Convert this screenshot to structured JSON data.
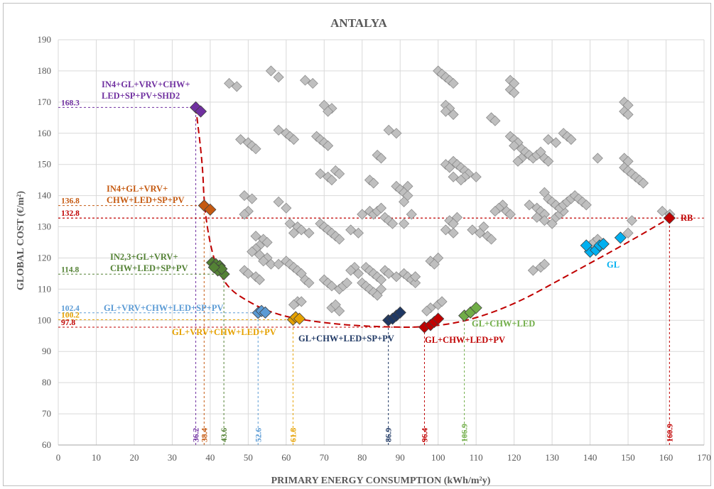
{
  "chart_data": {
    "type": "scatter",
    "title": "ANTALYA",
    "xlabel": "PRIMARY ENERGY CONSUMPTION (kWh/m²y)",
    "ylabel": "GLOBAL COST (€/m²)",
    "xlim": [
      0,
      170
    ],
    "ylim": [
      60,
      190
    ],
    "xticks": [
      "0",
      "10",
      "20",
      "30",
      "40",
      "50",
      "60",
      "70",
      "80",
      "90",
      "100",
      "110",
      "120",
      "130",
      "140",
      "150",
      "160",
      "170"
    ],
    "yticks": [
      "60",
      "70",
      "80",
      "90",
      "100",
      "110",
      "120",
      "130",
      "140",
      "150",
      "160",
      "170",
      "180",
      "190"
    ],
    "grid": true,
    "colors": {
      "grey": "#bfbfbf",
      "purple": "#7030a0",
      "orange": "#c55a11",
      "green": "#548235",
      "lightblue": "#5b9bd5",
      "gold": "#e5a100",
      "navy": "#1f3864",
      "red": "#c00000",
      "lightgreen": "#70ad47",
      "cyan": "#00b0f0"
    },
    "background_points": [
      [
        45,
        176
      ],
      [
        47,
        175
      ],
      [
        56,
        180
      ],
      [
        58,
        178
      ],
      [
        65,
        177
      ],
      [
        67,
        176
      ],
      [
        48,
        158
      ],
      [
        50,
        157
      ],
      [
        51,
        156
      ],
      [
        52,
        155
      ],
      [
        58,
        161
      ],
      [
        60,
        160
      ],
      [
        61,
        159
      ],
      [
        62,
        158
      ],
      [
        70,
        169
      ],
      [
        72,
        168
      ],
      [
        71,
        167
      ],
      [
        68,
        159
      ],
      [
        69,
        158
      ],
      [
        70,
        157
      ],
      [
        71,
        156
      ],
      [
        49,
        140
      ],
      [
        51,
        139
      ],
      [
        50,
        135
      ],
      [
        49,
        134
      ],
      [
        52,
        127
      ],
      [
        54,
        126
      ],
      [
        55,
        125
      ],
      [
        53,
        124
      ],
      [
        58,
        138
      ],
      [
        60,
        136
      ],
      [
        61,
        131
      ],
      [
        63,
        130
      ],
      [
        62,
        128
      ],
      [
        64,
        129
      ],
      [
        66,
        128
      ],
      [
        52,
        123
      ],
      [
        51,
        122
      ],
      [
        53,
        121
      ],
      [
        55,
        120
      ],
      [
        54,
        119
      ],
      [
        56,
        118
      ],
      [
        58,
        118
      ],
      [
        60,
        119
      ],
      [
        61,
        118
      ],
      [
        62,
        117
      ],
      [
        63,
        116
      ],
      [
        64,
        115
      ],
      [
        65,
        113
      ],
      [
        66,
        112
      ],
      [
        49,
        116
      ],
      [
        50,
        115
      ],
      [
        52,
        114
      ],
      [
        53,
        113
      ],
      [
        63,
        106
      ],
      [
        62,
        105
      ],
      [
        64,
        106
      ],
      [
        69,
        147
      ],
      [
        71,
        146
      ],
      [
        72,
        145
      ],
      [
        73,
        148
      ],
      [
        74,
        147
      ],
      [
        69,
        131
      ],
      [
        70,
        130
      ],
      [
        71,
        129
      ],
      [
        72,
        128
      ],
      [
        73,
        127
      ],
      [
        74,
        126
      ],
      [
        70,
        113
      ],
      [
        71,
        112
      ],
      [
        72,
        111
      ],
      [
        74,
        110
      ],
      [
        75,
        111
      ],
      [
        76,
        112
      ],
      [
        72,
        104
      ],
      [
        73,
        105
      ],
      [
        74,
        103
      ],
      [
        77,
        129
      ],
      [
        79,
        128
      ],
      [
        78,
        117
      ],
      [
        77,
        116
      ],
      [
        79,
        115
      ],
      [
        80,
        134
      ],
      [
        82,
        135
      ],
      [
        83,
        134
      ],
      [
        84,
        135
      ],
      [
        85,
        136
      ],
      [
        86,
        133
      ],
      [
        87,
        132
      ],
      [
        88,
        131
      ],
      [
        82,
        145
      ],
      [
        83,
        144
      ],
      [
        84,
        153
      ],
      [
        85,
        152
      ],
      [
        87,
        161
      ],
      [
        89,
        160
      ],
      [
        81,
        117
      ],
      [
        82,
        116
      ],
      [
        83,
        115
      ],
      [
        84,
        114
      ],
      [
        85,
        113
      ],
      [
        86,
        116
      ],
      [
        87,
        115
      ],
      [
        80,
        112
      ],
      [
        81,
        111
      ],
      [
        82,
        110
      ],
      [
        83,
        109
      ],
      [
        84,
        108
      ],
      [
        85,
        110
      ],
      [
        89,
        143
      ],
      [
        90,
        142
      ],
      [
        91,
        141
      ],
      [
        92,
        140
      ],
      [
        92,
        143
      ],
      [
        91,
        138
      ],
      [
        89,
        114
      ],
      [
        91,
        115
      ],
      [
        92,
        114
      ],
      [
        93,
        113
      ],
      [
        94,
        112
      ],
      [
        94,
        114
      ],
      [
        91,
        131
      ],
      [
        93,
        134
      ],
      [
        100,
        180
      ],
      [
        101,
        179
      ],
      [
        102,
        178
      ],
      [
        103,
        177
      ],
      [
        104,
        176
      ],
      [
        102,
        169
      ],
      [
        103,
        168
      ],
      [
        102,
        167
      ],
      [
        104,
        166
      ],
      [
        102,
        150
      ],
      [
        103,
        149
      ],
      [
        104,
        151
      ],
      [
        105,
        150
      ],
      [
        106,
        149
      ],
      [
        107,
        148
      ],
      [
        108,
        147
      ],
      [
        107,
        146
      ],
      [
        106,
        145
      ],
      [
        104,
        146
      ],
      [
        110,
        146
      ],
      [
        103,
        132
      ],
      [
        104,
        131
      ],
      [
        105,
        133
      ],
      [
        102,
        129
      ],
      [
        104,
        128
      ],
      [
        98,
        119
      ],
      [
        100,
        120
      ],
      [
        99,
        118
      ],
      [
        98,
        104
      ],
      [
        100,
        105
      ],
      [
        101,
        106
      ],
      [
        97,
        103
      ],
      [
        114,
        165
      ],
      [
        115,
        164
      ],
      [
        117,
        137
      ],
      [
        116,
        136
      ],
      [
        118,
        135
      ],
      [
        119,
        134
      ],
      [
        115,
        135
      ],
      [
        109,
        129
      ],
      [
        111,
        128
      ],
      [
        112,
        130
      ],
      [
        113,
        127
      ],
      [
        114,
        126
      ],
      [
        119,
        177
      ],
      [
        120,
        176
      ],
      [
        119,
        174
      ],
      [
        120,
        173
      ],
      [
        119,
        159
      ],
      [
        120,
        158
      ],
      [
        121,
        157
      ],
      [
        120,
        156
      ],
      [
        122,
        155
      ],
      [
        123,
        154
      ],
      [
        124,
        153
      ],
      [
        122,
        152
      ],
      [
        121,
        151
      ],
      [
        125,
        152
      ],
      [
        126,
        153
      ],
      [
        127,
        154
      ],
      [
        124,
        137
      ],
      [
        126,
        136
      ],
      [
        127,
        135
      ],
      [
        128,
        134
      ],
      [
        126,
        133
      ],
      [
        128,
        132
      ],
      [
        130,
        131
      ],
      [
        131,
        133
      ],
      [
        132,
        134
      ],
      [
        133,
        135
      ],
      [
        128,
        141
      ],
      [
        129,
        139
      ],
      [
        130,
        138
      ],
      [
        131,
        137
      ],
      [
        132,
        136
      ],
      [
        133,
        137
      ],
      [
        134,
        138
      ],
      [
        135,
        139
      ],
      [
        136,
        140
      ],
      [
        137,
        139
      ],
      [
        138,
        138
      ],
      [
        139,
        137
      ],
      [
        129,
        158
      ],
      [
        131,
        157
      ],
      [
        133,
        160
      ],
      [
        134,
        159
      ],
      [
        135,
        158
      ],
      [
        125,
        116
      ],
      [
        127,
        117
      ],
      [
        128,
        118
      ],
      [
        128,
        152
      ],
      [
        129,
        151
      ],
      [
        142,
        152
      ],
      [
        140,
        124
      ],
      [
        141,
        125
      ],
      [
        142,
        126
      ],
      [
        143,
        124
      ],
      [
        149,
        170
      ],
      [
        150,
        169
      ],
      [
        149,
        167
      ],
      [
        150,
        166
      ],
      [
        149,
        152
      ],
      [
        150,
        151
      ],
      [
        149,
        149
      ],
      [
        150,
        148
      ],
      [
        151,
        147
      ],
      [
        152,
        146
      ],
      [
        153,
        145
      ],
      [
        154,
        144
      ],
      [
        150,
        128
      ],
      [
        151,
        132
      ],
      [
        159,
        135
      ],
      [
        161,
        134
      ]
    ],
    "series": [
      {
        "name": "IN4+GL+VRV+CHW+LED+SP+PV+SHD2",
        "color": "purple",
        "points": [
          [
            36.2,
            168.3
          ],
          [
            37.5,
            167
          ]
        ]
      },
      {
        "name": "IN4+GL+VRV+CHW+LED+SP+PV",
        "color": "orange",
        "points": [
          [
            38.4,
            136.8
          ],
          [
            40,
            135.5
          ]
        ]
      },
      {
        "name": "IN2,3+GL+VRV+CHW+LED+SP+PV",
        "color": "green",
        "points": [
          [
            40.5,
            118.5
          ],
          [
            41.5,
            118
          ],
          [
            42.5,
            117.5
          ],
          [
            43.6,
            114.8
          ],
          [
            42,
            116
          ],
          [
            43,
            116.5
          ],
          [
            41,
            117
          ]
        ]
      },
      {
        "name": "GL+VRV+CHW+LED+SP+PV",
        "color": "lightblue",
        "points": [
          [
            52.6,
            102.4
          ],
          [
            53.5,
            103
          ],
          [
            54.5,
            102.5
          ]
        ]
      },
      {
        "name": "GL+VRV+CHW+LED+PV",
        "color": "gold",
        "points": [
          [
            61.8,
            100.2
          ],
          [
            62.5,
            101
          ],
          [
            63.5,
            100.5
          ]
        ]
      },
      {
        "name": "GL+CHW+LED+SP+PV",
        "color": "navy",
        "points": [
          [
            86.9,
            100
          ],
          [
            88,
            100.5
          ],
          [
            89,
            101.5
          ],
          [
            90,
            102.5
          ]
        ]
      },
      {
        "name": "GL+CHW+LED+PV",
        "color": "red",
        "points": [
          [
            96.4,
            97.8
          ],
          [
            98,
            98.5
          ],
          [
            99,
            99.5
          ],
          [
            100,
            100.5
          ]
        ]
      },
      {
        "name": "GL+CHW+LED",
        "color": "lightgreen",
        "points": [
          [
            106.9,
            101.5
          ],
          [
            108.5,
            102.5
          ],
          [
            110,
            104
          ]
        ]
      },
      {
        "name": "GL",
        "color": "cyan",
        "points": [
          [
            140,
            122
          ],
          [
            141.5,
            122.5
          ],
          [
            142.5,
            124
          ],
          [
            143.5,
            124.5
          ],
          [
            148,
            126.5
          ],
          [
            139,
            124
          ]
        ]
      },
      {
        "name": "RB",
        "color": "red",
        "points": [
          [
            160.9,
            132.8
          ]
        ]
      }
    ],
    "pareto_front": [
      [
        36.2,
        168.3
      ],
      [
        38,
        150
      ],
      [
        38.4,
        136.8
      ],
      [
        40,
        124
      ],
      [
        42,
        116
      ],
      [
        45,
        110
      ],
      [
        50,
        106
      ],
      [
        55,
        103
      ],
      [
        62,
        100.5
      ],
      [
        75,
        98.5
      ],
      [
        87,
        97.8
      ],
      [
        96.4,
        97.8
      ],
      [
        107,
        99.5
      ],
      [
        120,
        105
      ],
      [
        135,
        115
      ],
      [
        150,
        125
      ],
      [
        160.9,
        132.8
      ]
    ],
    "reference_lines": [
      {
        "x": 36.2,
        "y": 168.3,
        "xlabel": "36.2",
        "ylabel": "168.3",
        "color": "purple"
      },
      {
        "x": 38.4,
        "y": 136.8,
        "xlabel": "38.4",
        "ylabel": "136.8",
        "color": "orange"
      },
      {
        "x": 43.6,
        "y": 114.8,
        "xlabel": "43.6",
        "ylabel": "114.8",
        "color": "green"
      },
      {
        "x": 52.6,
        "y": 102.4,
        "xlabel": "52.6",
        "ylabel": "102.4",
        "color": "lightblue"
      },
      {
        "x": 61.8,
        "y": 100.2,
        "xlabel": "61.8",
        "ylabel": "100.2",
        "color": "gold"
      },
      {
        "x": 86.9,
        "y": null,
        "xlabel": "86.9",
        "ylabel": null,
        "color": "navy"
      },
      {
        "x": 96.4,
        "y": 97.8,
        "xlabel": "96.4",
        "ylabel": "97.8",
        "color": "red"
      },
      {
        "x": 106.9,
        "y": null,
        "xlabel": "106.9",
        "ylabel": null,
        "color": "lightgreen"
      },
      {
        "x": 160.9,
        "y": 132.8,
        "xlabel": "160.9",
        "ylabel": "132.8",
        "color": "red"
      }
    ],
    "annotations": [
      {
        "lines": [
          "IN4+GL+VRV+CHW+",
          "LED+SP+PV+SHD2"
        ],
        "color": "purple",
        "anchor": [
          36.2,
          168.3
        ]
      },
      {
        "lines": [
          "IN4+GL+VRV+",
          "CHW+LED+SP+PV"
        ],
        "color": "orange",
        "anchor": [
          38.4,
          136.8
        ]
      },
      {
        "lines": [
          "IN2,3+GL+VRV+",
          "CHW+LED+SP+PV"
        ],
        "color": "green",
        "anchor": [
          43.6,
          114.8
        ]
      },
      {
        "lines": [
          "GL+VRV+CHW+LED+SP+PV"
        ],
        "color": "lightblue",
        "anchor": [
          52.6,
          102.4
        ]
      },
      {
        "lines": [
          "GL+VRV+CHW+LED+PV"
        ],
        "color": "gold",
        "anchor": [
          61.8,
          100.2
        ]
      },
      {
        "lines": [
          "GL+CHW+LED+SP+PV"
        ],
        "color": "navy",
        "anchor": [
          86.9,
          100
        ]
      },
      {
        "lines": [
          "GL+CHW+LED+PV"
        ],
        "color": "red",
        "anchor": [
          96.4,
          97.8
        ]
      },
      {
        "lines": [
          "GL+CHW+LED"
        ],
        "color": "lightgreen",
        "anchor": [
          106.9,
          101.5
        ]
      },
      {
        "lines": [
          "GL"
        ],
        "color": "cyan",
        "anchor": [
          143,
          122
        ]
      },
      {
        "lines": [
          "RB"
        ],
        "color": "red",
        "anchor": [
          160.9,
          132.8
        ]
      }
    ]
  }
}
